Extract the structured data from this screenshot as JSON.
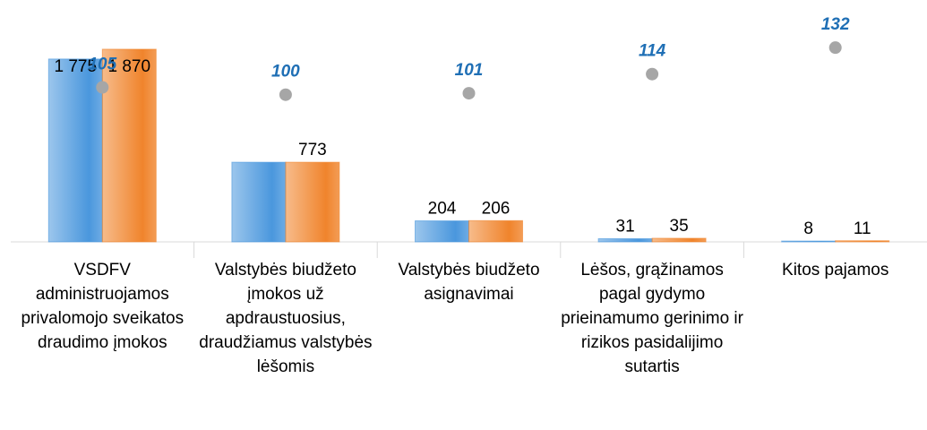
{
  "chart_data": {
    "type": "bar",
    "categories": [
      "VSDFV administruojamos privalomojo sveikatos draudimo įmokos",
      "Valstybės biudžeto įmokos už apdraustuosius, draudžiamus valstybės lėšomis",
      "Valstybės biudžeto asignavimai",
      "Lėšos, grąžinamos pagal gydymo prieinamumo gerinimo ir rizikos pasidalijimo sutartis",
      "Kitos pajamos"
    ],
    "series": [
      {
        "color": "#4a97dd",
        "values": [
          1775,
          773,
          204,
          31,
          8
        ],
        "value_labels": [
          "1 775",
          null,
          "204",
          "31",
          "8"
        ]
      },
      {
        "color": "#f0842c",
        "values": [
          1870,
          773,
          206,
          35,
          11
        ],
        "value_labels": [
          "1 870",
          "773",
          "206",
          "35",
          "11"
        ]
      },
      {
        "type": "scatter",
        "color": "#a6a6a6",
        "axis": "y2",
        "values": [
          105,
          100,
          101,
          114,
          132
        ]
      }
    ],
    "ylim": [
      0,
      2000
    ],
    "y2lim": [
      0,
      140
    ]
  }
}
